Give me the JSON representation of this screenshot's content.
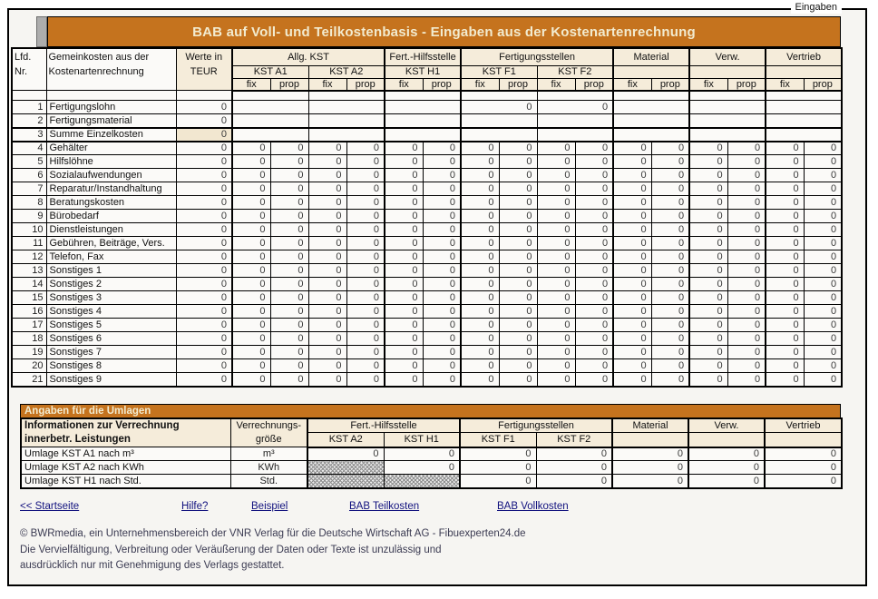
{
  "tab_label": "Eingaben",
  "colors": {
    "title_orange": "#C5731E",
    "title_text": "#F2EBCF",
    "header_beige": "#F5ECDA",
    "sum_cell_beige": "#F2E7D0",
    "link_blue": "#11117E",
    "border_black": "#000000"
  },
  "upper": {
    "title": "BAB auf Voll- und Teilkostenbasis - Eingaben aus der Kostenartenrechnung",
    "header": {
      "lfd_line1": "Lfd.",
      "lfd_line2": "Nr.",
      "gemeinkosten_line1": "Gemeinkosten aus der",
      "gemeinkosten_line2": "Kostenartenrechnung",
      "werte_line1": "Werte in",
      "werte_line2": "TEUR",
      "groups": [
        {
          "label": "Allg. KST",
          "cols": [
            "KST A1",
            "KST A2"
          ]
        },
        {
          "label": "Fert.-Hilfsstelle",
          "cols": [
            "KST H1"
          ]
        },
        {
          "label": "Fertigungsstellen",
          "cols": [
            "KST F1",
            "KST F2"
          ]
        },
        {
          "label": "Material",
          "cols": [
            ""
          ]
        },
        {
          "label": "Verw.",
          "cols": [
            ""
          ]
        },
        {
          "label": "Vertrieb",
          "cols": [
            ""
          ]
        }
      ],
      "fix_label": "fix",
      "prop_label": "prop"
    },
    "rows": [
      {
        "nr": "1",
        "label": "Fertigungslohn",
        "werte": "0",
        "pairs": [
          "",
          "",
          "",
          "0",
          "0",
          "",
          "",
          ""
        ]
      },
      {
        "nr": "2",
        "label": "Fertigungsmaterial",
        "werte": "0",
        "pairs": [
          "",
          "",
          "",
          "",
          "",
          "",
          "",
          ""
        ]
      },
      {
        "nr": "3",
        "label": "Summe Einzelkosten",
        "werte": "0",
        "pairs": [
          "",
          "",
          "",
          "",
          "",
          "",
          "",
          ""
        ],
        "emphasis": true
      },
      {
        "nr": "4",
        "label": "Gehälter",
        "werte": "0",
        "values": [
          "0",
          "0",
          "0",
          "0",
          "0",
          "0",
          "0",
          "0",
          "0",
          "0",
          "0",
          "0",
          "0",
          "0",
          "0",
          "0"
        ]
      },
      {
        "nr": "5",
        "label": "Hilfslöhne",
        "werte": "0",
        "values": [
          "0",
          "0",
          "0",
          "0",
          "0",
          "0",
          "0",
          "0",
          "0",
          "0",
          "0",
          "0",
          "0",
          "0",
          "0",
          "0"
        ]
      },
      {
        "nr": "6",
        "label": "Sozialaufwendungen",
        "werte": "0",
        "values": [
          "0",
          "0",
          "0",
          "0",
          "0",
          "0",
          "0",
          "0",
          "0",
          "0",
          "0",
          "0",
          "0",
          "0",
          "0",
          "0"
        ]
      },
      {
        "nr": "7",
        "label": "Reparatur/Instandhaltung",
        "werte": "0",
        "values": [
          "0",
          "0",
          "0",
          "0",
          "0",
          "0",
          "0",
          "0",
          "0",
          "0",
          "0",
          "0",
          "0",
          "0",
          "0",
          "0"
        ]
      },
      {
        "nr": "8",
        "label": "Beratungskosten",
        "werte": "0",
        "values": [
          "0",
          "0",
          "0",
          "0",
          "0",
          "0",
          "0",
          "0",
          "0",
          "0",
          "0",
          "0",
          "0",
          "0",
          "0",
          "0"
        ]
      },
      {
        "nr": "9",
        "label": "Bürobedarf",
        "werte": "0",
        "values": [
          "0",
          "0",
          "0",
          "0",
          "0",
          "0",
          "0",
          "0",
          "0",
          "0",
          "0",
          "0",
          "0",
          "0",
          "0",
          "0"
        ]
      },
      {
        "nr": "10",
        "label": "Dienstleistungen",
        "werte": "0",
        "values": [
          "0",
          "0",
          "0",
          "0",
          "0",
          "0",
          "0",
          "0",
          "0",
          "0",
          "0",
          "0",
          "0",
          "0",
          "0",
          "0"
        ]
      },
      {
        "nr": "11",
        "label": "Gebühren, Beiträge, Vers.",
        "werte": "0",
        "values": [
          "0",
          "0",
          "0",
          "0",
          "0",
          "0",
          "0",
          "0",
          "0",
          "0",
          "0",
          "0",
          "0",
          "0",
          "0",
          "0"
        ]
      },
      {
        "nr": "12",
        "label": "Telefon, Fax",
        "werte": "0",
        "values": [
          "0",
          "0",
          "0",
          "0",
          "0",
          "0",
          "0",
          "0",
          "0",
          "0",
          "0",
          "0",
          "0",
          "0",
          "0",
          "0"
        ]
      },
      {
        "nr": "13",
        "label": "Sonstiges 1",
        "werte": "0",
        "values": [
          "0",
          "0",
          "0",
          "0",
          "0",
          "0",
          "0",
          "0",
          "0",
          "0",
          "0",
          "0",
          "0",
          "0",
          "0",
          "0"
        ]
      },
      {
        "nr": "14",
        "label": "Sonstiges 2",
        "werte": "0",
        "values": [
          "0",
          "0",
          "0",
          "0",
          "0",
          "0",
          "0",
          "0",
          "0",
          "0",
          "0",
          "0",
          "0",
          "0",
          "0",
          "0"
        ]
      },
      {
        "nr": "15",
        "label": "Sonstiges 3",
        "werte": "0",
        "values": [
          "0",
          "0",
          "0",
          "0",
          "0",
          "0",
          "0",
          "0",
          "0",
          "0",
          "0",
          "0",
          "0",
          "0",
          "0",
          "0"
        ]
      },
      {
        "nr": "16",
        "label": "Sonstiges 4",
        "werte": "0",
        "values": [
          "0",
          "0",
          "0",
          "0",
          "0",
          "0",
          "0",
          "0",
          "0",
          "0",
          "0",
          "0",
          "0",
          "0",
          "0",
          "0"
        ]
      },
      {
        "nr": "17",
        "label": "Sonstiges 5",
        "werte": "0",
        "values": [
          "0",
          "0",
          "0",
          "0",
          "0",
          "0",
          "0",
          "0",
          "0",
          "0",
          "0",
          "0",
          "0",
          "0",
          "0",
          "0"
        ]
      },
      {
        "nr": "18",
        "label": "Sonstiges 6",
        "werte": "0",
        "values": [
          "0",
          "0",
          "0",
          "0",
          "0",
          "0",
          "0",
          "0",
          "0",
          "0",
          "0",
          "0",
          "0",
          "0",
          "0",
          "0"
        ]
      },
      {
        "nr": "19",
        "label": "Sonstiges 7",
        "werte": "0",
        "values": [
          "0",
          "0",
          "0",
          "0",
          "0",
          "0",
          "0",
          "0",
          "0",
          "0",
          "0",
          "0",
          "0",
          "0",
          "0",
          "0"
        ]
      },
      {
        "nr": "20",
        "label": "Sonstiges 8",
        "werte": "0",
        "values": [
          "0",
          "0",
          "0",
          "0",
          "0",
          "0",
          "0",
          "0",
          "0",
          "0",
          "0",
          "0",
          "0",
          "0",
          "0",
          "0"
        ]
      },
      {
        "nr": "21",
        "label": "Sonstiges 9",
        "werte": "0",
        "values": [
          "0",
          "0",
          "0",
          "0",
          "0",
          "0",
          "0",
          "0",
          "0",
          "0",
          "0",
          "0",
          "0",
          "0",
          "0",
          "0"
        ]
      }
    ]
  },
  "lower": {
    "title": "Angaben für die Umlagen",
    "header": {
      "info_line1": "Informationen zur Verrechnung",
      "info_line2": "innerbetr. Leistungen",
      "verrechnung_line1": "Verrechnungs-",
      "verrechnung_line2": "größe",
      "groups": [
        {
          "label": "Fert.-Hilfsstelle",
          "cols": [
            "KST A2",
            "KST H1"
          ]
        },
        {
          "label": "Fertigungsstellen",
          "cols": [
            "KST F1",
            "KST F2"
          ]
        },
        {
          "label": "Material",
          "cols": [
            ""
          ]
        },
        {
          "label": "Verw.",
          "cols": [
            ""
          ]
        },
        {
          "label": "Vertrieb",
          "cols": [
            ""
          ]
        }
      ]
    },
    "rows": [
      {
        "label": "Umlage KST A1 nach m³",
        "unit": "m³",
        "values": [
          "0",
          "0",
          "0",
          "0",
          "0",
          "0",
          "0"
        ]
      },
      {
        "label": "Umlage KST A2 nach KWh",
        "unit": "KWh",
        "values": [
          "HATCH",
          "0",
          "0",
          "0",
          "0",
          "0",
          "0"
        ]
      },
      {
        "label": "Umlage KST H1 nach Std.",
        "unit": "Std.",
        "values": [
          "HATCH",
          "HATCH",
          "0",
          "0",
          "0",
          "0",
          "0"
        ]
      }
    ]
  },
  "links": [
    {
      "label": "<< Startseite",
      "slug": "startseite"
    },
    {
      "label": "Hilfe?",
      "slug": "hilfe"
    },
    {
      "label": "Beispiel",
      "slug": "beispiel"
    },
    {
      "label": "BAB Teilkosten",
      "slug": "bab-teilkosten"
    },
    {
      "label": "BAB Vollkosten",
      "slug": "bab-vollkosten"
    }
  ],
  "footer": [
    "© BWRmedia, ein Unternehmensbereich der VNR Verlag für die Deutsche Wirtschaft AG - Fibuexperten24.de",
    "Die Vervielfältigung, Verbreitung oder Veräußerung der Daten oder Texte ist unzulässig und",
    "ausdrücklich nur mit Genehmigung des Verlags gestattet."
  ]
}
